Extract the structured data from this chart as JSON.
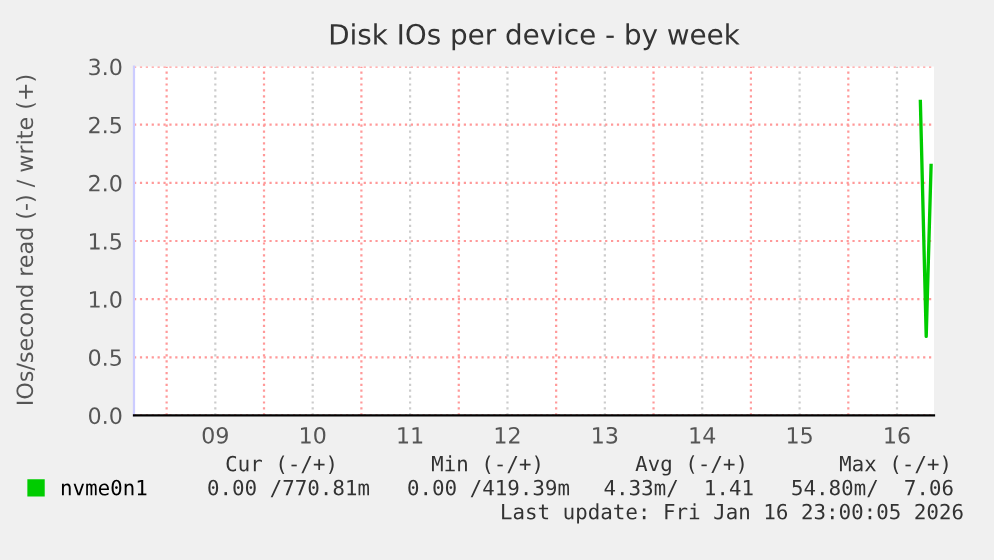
{
  "chart_data": {
    "type": "line",
    "title": "Disk IOs per device - by week",
    "ylabel": "IOs/second read (-) / write (+)",
    "series": [
      {
        "name": "nvme0n1",
        "color": "#00cc00",
        "x": [
          16.74,
          16.8,
          16.85
        ],
        "values": [
          2.7,
          0.68,
          2.15
        ]
      }
    ],
    "xlim": [
      8.665,
      16.88
    ],
    "xticks": [
      {
        "value": 9,
        "label": null
      },
      {
        "value": 9.5,
        "label": "09"
      },
      {
        "value": 10,
        "label": null
      },
      {
        "value": 10.5,
        "label": "10"
      },
      {
        "value": 11,
        "label": null
      },
      {
        "value": 11.5,
        "label": "11"
      },
      {
        "value": 12,
        "label": null
      },
      {
        "value": 12.5,
        "label": "12"
      },
      {
        "value": 13,
        "label": null
      },
      {
        "value": 13.5,
        "label": "13"
      },
      {
        "value": 14,
        "label": null
      },
      {
        "value": 14.5,
        "label": "14"
      },
      {
        "value": 15,
        "label": null
      },
      {
        "value": 15.5,
        "label": "15"
      },
      {
        "value": 16,
        "label": null
      },
      {
        "value": 16.5,
        "label": "16"
      }
    ],
    "ylim": [
      0,
      3.0
    ],
    "yticks": [
      {
        "value": 0,
        "label": "0.0"
      },
      {
        "value": 0.5,
        "label": "0.5"
      },
      {
        "value": 1,
        "label": "1.0"
      },
      {
        "value": 1.5,
        "label": "1.5"
      },
      {
        "value": 2,
        "label": "2.0"
      },
      {
        "value": 2.5,
        "label": "2.5"
      },
      {
        "value": 3,
        "label": "3.0"
      }
    ],
    "grid": true,
    "legend": "bottom left",
    "annotations": [
      "Cur (-/+)",
      "Min (-/+)",
      "Avg (-/+)",
      "Max (-/+)",
      "0.00 /770.81m",
      "0.00 /419.39m",
      "4.33m/  1.41",
      "54.80m/  7.06",
      "Last update: Fri Jan 16 23:00:05 2026"
    ]
  }
}
